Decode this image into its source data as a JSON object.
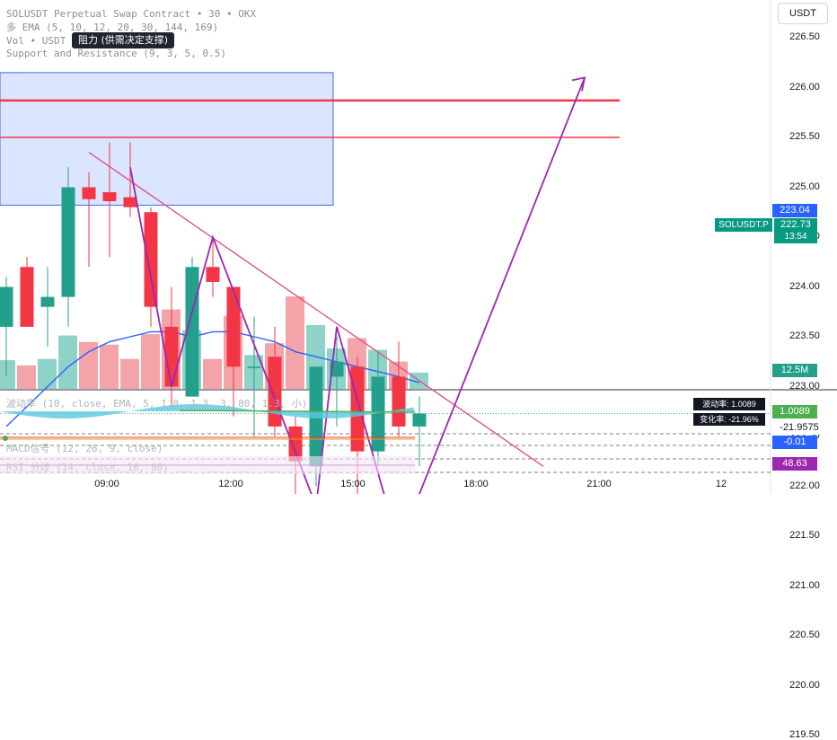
{
  "legend": {
    "title": "SOLUSDT Perpetual Swap Contract • 30 • OKX",
    "ema": "多 EMA (5, 10, 12, 20, 30, 144, 169)",
    "vol": "Vol • USDT",
    "sr": "Support and Resistance (9, 3, 5, 0.5)"
  },
  "tooltip": "阻力 (供需决定支撑)",
  "currency": "USDT",
  "symbol_tag": "SOLUSDT.P",
  "current_price": "222.73",
  "countdown": "13:54",
  "ema_tag": "223.04",
  "volume_tag": "12.5M",
  "indicator": {
    "label": "波动率 (10, close, EMA, 5, 1.8, 1.3, 3, 80, 1.3, 小)",
    "box1": "波动率: 1.0089",
    "box2": "变化率: -21.96%",
    "tag1": "1.0089",
    "tag2": "-21.9575"
  },
  "macd": {
    "label": "MACD信号 (12, 26, 9, close)",
    "tag": "-0.01"
  },
  "rsi": {
    "label": "RSI 分歧 (14, close, 16, 80)",
    "tag": "48.63"
  },
  "colors": {
    "up": "#22a08c",
    "down": "#f23645",
    "vol_up": "#8fd3c8",
    "vol_down": "#f4a3a8",
    "ema": "#2962ff",
    "trend": "#e0538a",
    "projection": "#9c27b0",
    "resistance": "#f23645",
    "zone": "#cfdcff"
  },
  "chart_data": {
    "type": "candlestick",
    "title": "SOLUSDT Perpetual Swap Contract",
    "interval": "30",
    "exchange": "OKX",
    "y_ticks": [
      "226.50",
      "226.00",
      "225.50",
      "225.00",
      "224.50",
      "224.00",
      "223.50",
      "223.00",
      "222.50",
      "222.00",
      "221.50",
      "221.00",
      "220.50",
      "220.00",
      "219.50"
    ],
    "x_ticks": [
      "09:00",
      "12:00",
      "15:00",
      "18:00",
      "21:00",
      "12"
    ],
    "ylim": [
      219.4,
      226.75
    ],
    "candles": [
      {
        "o": 223.6,
        "h": 224.1,
        "l": 223.1,
        "c": 224.0
      },
      {
        "o": 224.2,
        "h": 224.3,
        "l": 223.6,
        "c": 223.6
      },
      {
        "o": 223.8,
        "h": 224.2,
        "l": 223.4,
        "c": 223.9
      },
      {
        "o": 223.9,
        "h": 225.2,
        "l": 223.6,
        "c": 225.0
      },
      {
        "o": 225.0,
        "h": 225.15,
        "l": 224.2,
        "c": 224.88
      },
      {
        "o": 224.95,
        "h": 225.45,
        "l": 224.3,
        "c": 224.86
      },
      {
        "o": 224.9,
        "h": 225.45,
        "l": 224.7,
        "c": 224.8
      },
      {
        "o": 224.75,
        "h": 224.8,
        "l": 223.6,
        "c": 223.8
      },
      {
        "o": 223.6,
        "h": 224.0,
        "l": 222.8,
        "c": 223.0
      },
      {
        "o": 222.9,
        "h": 224.3,
        "l": 222.9,
        "c": 224.2
      },
      {
        "o": 224.2,
        "h": 224.5,
        "l": 223.9,
        "c": 224.05
      },
      {
        "o": 224.0,
        "h": 224.0,
        "l": 222.7,
        "c": 223.2
      },
      {
        "o": 223.2,
        "h": 223.7,
        "l": 222.5,
        "c": 223.2
      },
      {
        "o": 223.3,
        "h": 223.6,
        "l": 222.5,
        "c": 222.6
      },
      {
        "o": 222.6,
        "h": 222.7,
        "l": 221.7,
        "c": 222.25
      },
      {
        "o": 222.2,
        "h": 223.2,
        "l": 222.0,
        "c": 223.2
      },
      {
        "o": 223.1,
        "h": 223.5,
        "l": 222.6,
        "c": 223.25
      },
      {
        "o": 223.2,
        "h": 223.3,
        "l": 221.9,
        "c": 222.35
      },
      {
        "o": 222.35,
        "h": 223.35,
        "l": 222.2,
        "c": 223.1
      },
      {
        "o": 223.1,
        "h": 223.45,
        "l": 222.5,
        "c": 222.6
      },
      {
        "o": 222.6,
        "h": 222.9,
        "l": 222.2,
        "c": 222.73
      }
    ],
    "volume": [
      22,
      18,
      23,
      41,
      36,
      34,
      23,
      42,
      61,
      45,
      23,
      56,
      26,
      35,
      71,
      49,
      31,
      39,
      30,
      21,
      12.5
    ],
    "ema_line": [
      222.6,
      222.8,
      223.0,
      223.2,
      223.35,
      223.45,
      223.5,
      223.55,
      223.55,
      223.5,
      223.55,
      223.55,
      223.5,
      223.45,
      223.35,
      223.3,
      223.25,
      223.2,
      223.15,
      223.1,
      223.04
    ],
    "resistance_levels": [
      225.87,
      225.5
    ],
    "supply_zone": {
      "from": 224.82,
      "to": 226.15
    },
    "trendline": [
      {
        "i": 4,
        "p": 225.35
      },
      {
        "i": 26,
        "p": 222.2
      }
    ],
    "projection": [
      {
        "i": 6,
        "p": 225.2
      },
      {
        "i": 8,
        "p": 223.0
      },
      {
        "i": 10,
        "p": 224.5
      },
      {
        "i": 15,
        "p": 221.8
      },
      {
        "i": 16,
        "p": 223.6
      },
      {
        "i": 19,
        "p": 221.4
      },
      {
        "i": 28,
        "p": 226.1
      }
    ],
    "indicator_value": 1.0089,
    "change_rate": -21.9575,
    "macd_value": -0.01,
    "rsi_value": 48.63
  }
}
